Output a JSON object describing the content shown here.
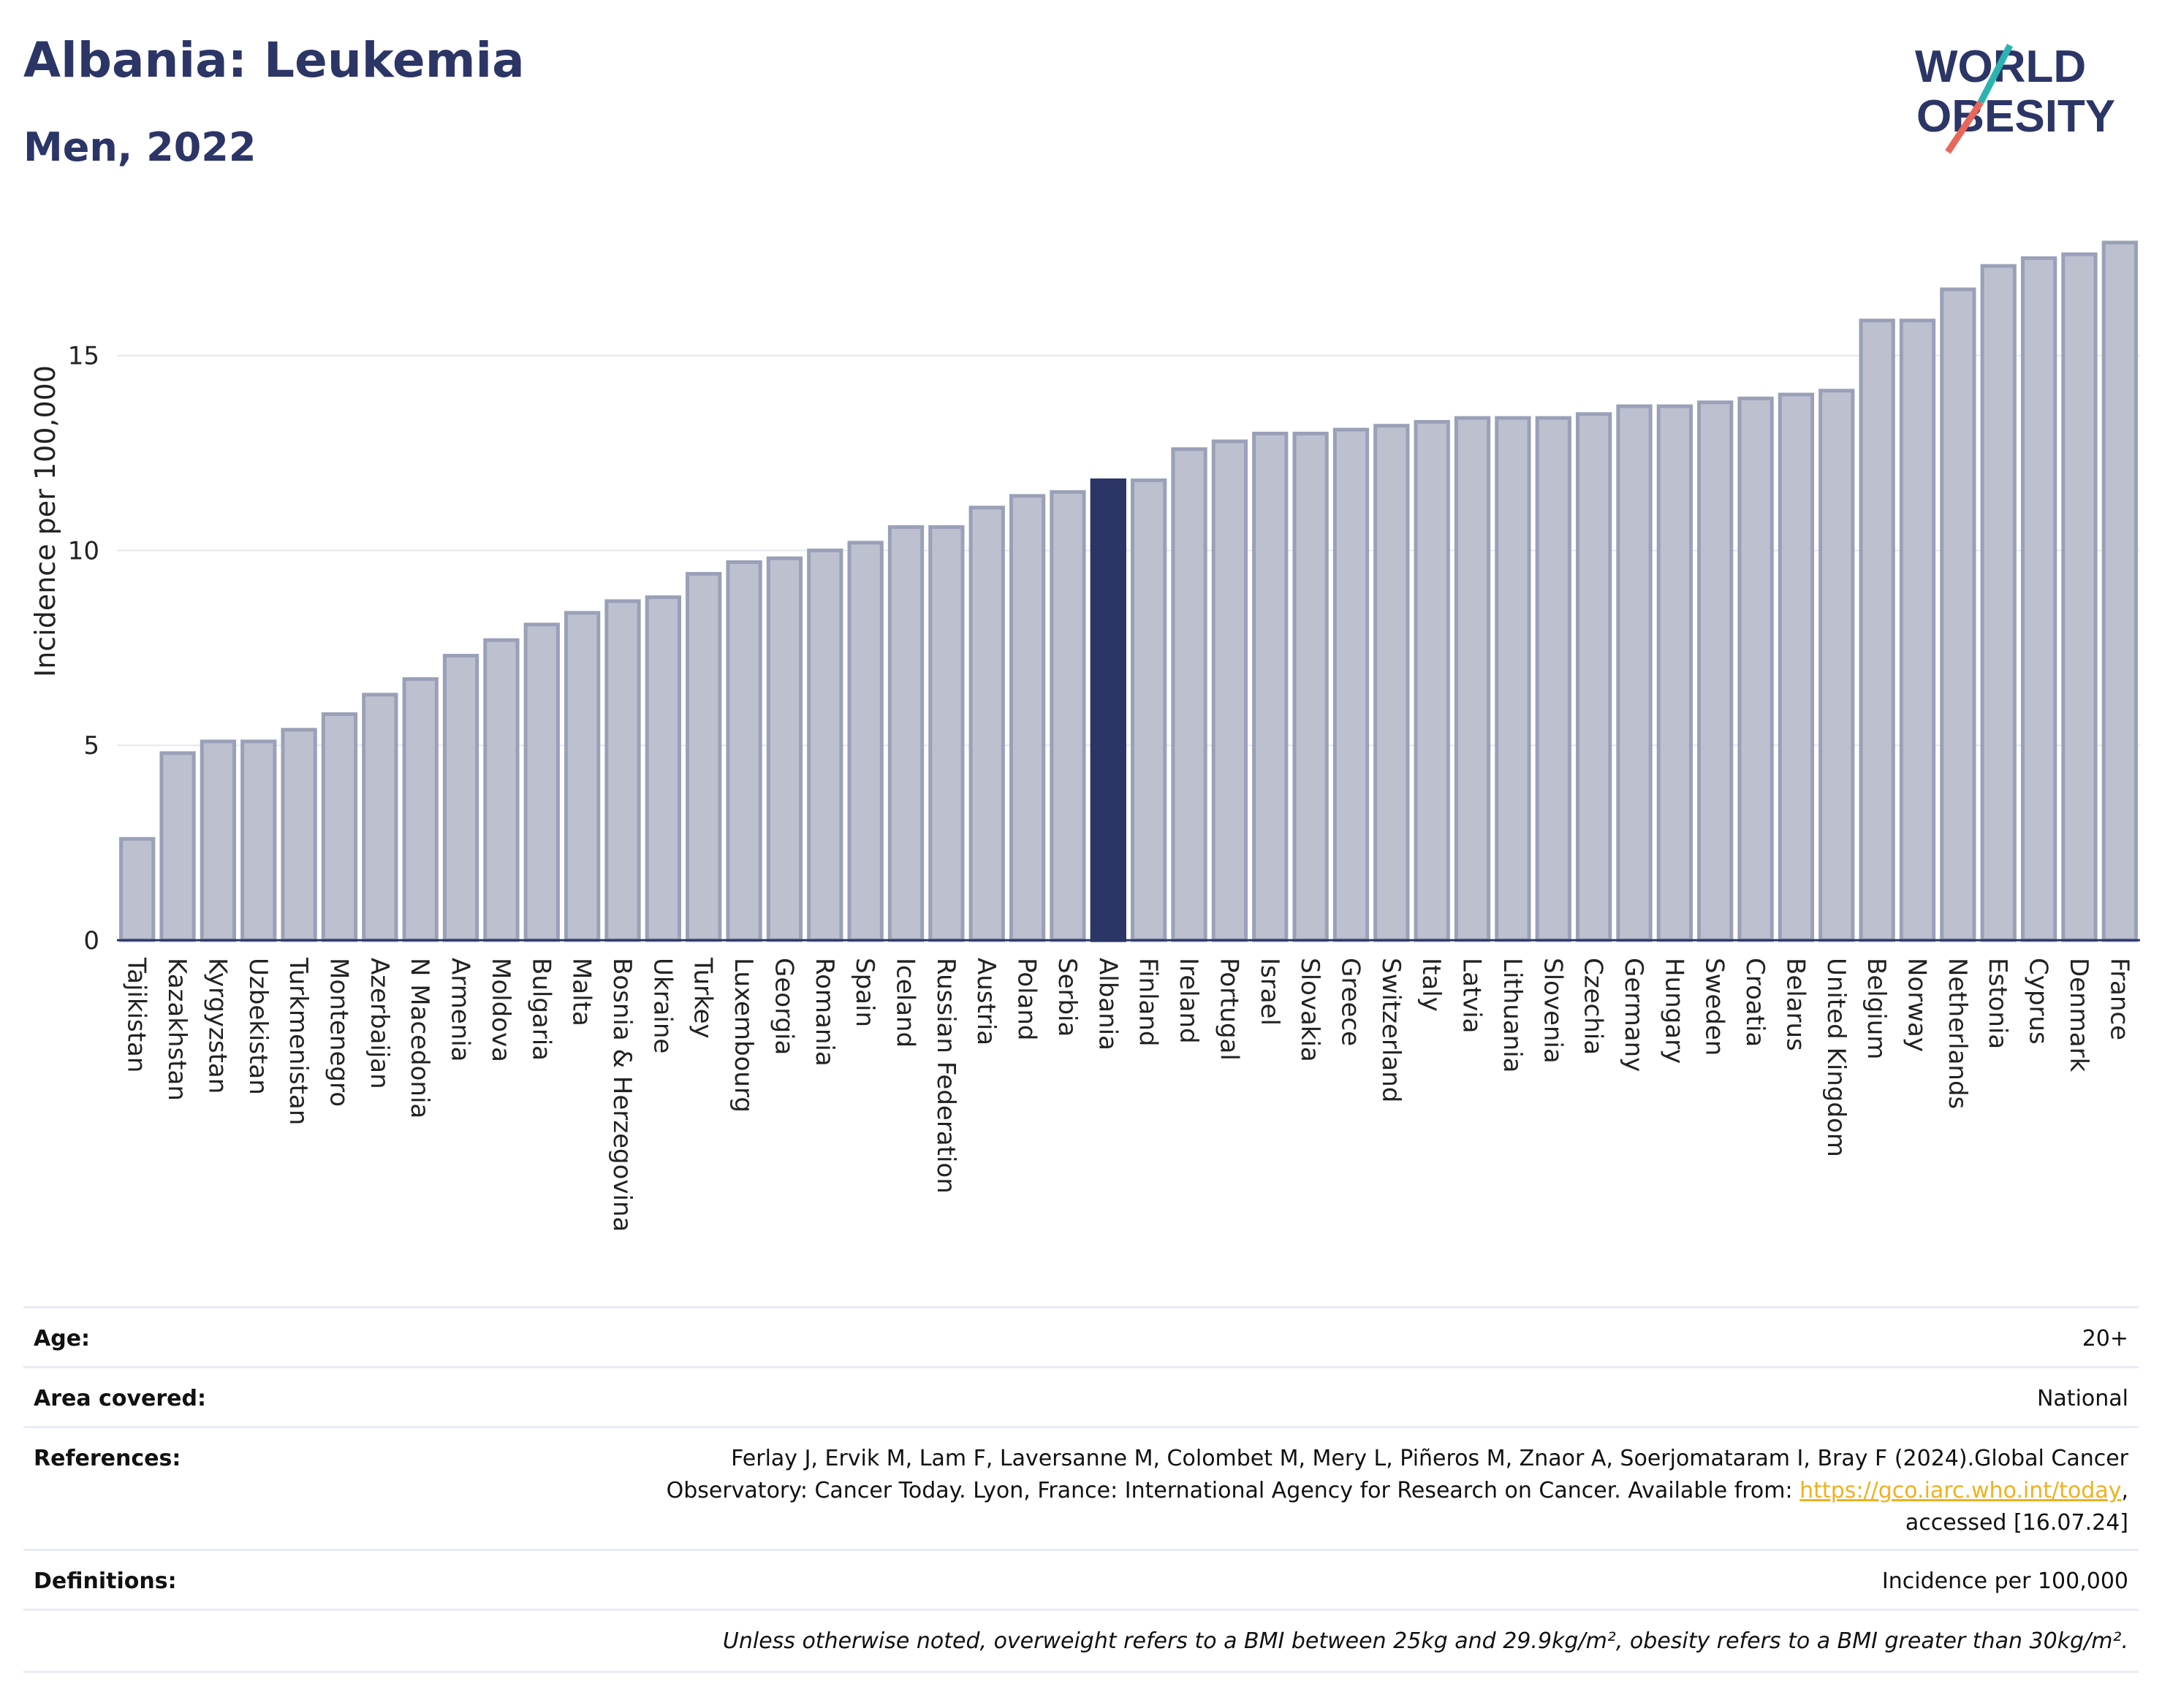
{
  "header": {
    "title": "Albania: Leukemia",
    "subtitle": "Men, 2022",
    "logo_line1": "WORLD",
    "logo_line2": "OBESITY"
  },
  "colors": {
    "bar": "#bcc0cf",
    "bar_stroke": "#9aa0b8",
    "highlight": "#2b3566",
    "title": "#2b3566",
    "grid": "#e6e8ef"
  },
  "chart_data": {
    "type": "bar",
    "ylabel": "Incidence per 100,000",
    "ylim": [
      0,
      18.5
    ],
    "yticks": [
      0,
      5,
      10,
      15
    ],
    "highlight": "Albania",
    "grid": true,
    "categories": [
      "Tajikistan",
      "Kazakhstan",
      "Kyrgyzstan",
      "Uzbekistan",
      "Turkmenistan",
      "Montenegro",
      "Azerbaijan",
      "N Macedonia",
      "Armenia",
      "Moldova",
      "Bulgaria",
      "Malta",
      "Bosnia & Herzegovina",
      "Ukraine",
      "Turkey",
      "Luxembourg",
      "Georgia",
      "Romania",
      "Spain",
      "Iceland",
      "Russian Federation",
      "Austria",
      "Poland",
      "Serbia",
      "Albania",
      "Finland",
      "Ireland",
      "Portugal",
      "Israel",
      "Slovakia",
      "Greece",
      "Switzerland",
      "Italy",
      "Latvia",
      "Lithuania",
      "Slovenia",
      "Czechia",
      "Germany",
      "Hungary",
      "Sweden",
      "Croatia",
      "Belarus",
      "United Kingdom",
      "Belgium",
      "Norway",
      "Netherlands",
      "Estonia",
      "Cyprus",
      "Denmark",
      "France"
    ],
    "values": [
      2.6,
      4.8,
      5.1,
      5.1,
      5.4,
      5.8,
      6.3,
      6.7,
      7.3,
      7.7,
      8.1,
      8.4,
      8.7,
      8.8,
      9.4,
      9.7,
      9.8,
      10.0,
      10.2,
      10.6,
      10.6,
      11.1,
      11.4,
      11.5,
      11.8,
      11.8,
      12.6,
      12.8,
      13.0,
      13.0,
      13.1,
      13.2,
      13.3,
      13.4,
      13.4,
      13.4,
      13.5,
      13.7,
      13.7,
      13.8,
      13.9,
      14.0,
      14.1,
      15.9,
      15.9,
      16.7,
      17.3,
      17.5,
      17.6,
      17.9
    ]
  },
  "meta": {
    "age_label": "Age:",
    "age_value": "20+",
    "area_label": "Area covered:",
    "area_value": "National",
    "references_label": "References:",
    "references_line1": "Ferlay J, Ervik M, Lam F, Laversanne M, Colombet M, Mery L, Piñeros M, Znaor A, Soerjomataram I, Bray F (2024).Global Cancer",
    "references_line2_pre": "Observatory: Cancer Today. Lyon, France: International Agency for Research on Cancer. Available from: ",
    "references_link": "https://gco.iarc.who.int/today",
    "references_line2_post": ",",
    "references_line3": "accessed [16.07.24]",
    "definitions_label": "Definitions:",
    "definitions_value": "Incidence per 100,000",
    "note": "Unless otherwise noted, overweight refers to a BMI between 25kg and 29.9kg/m², obesity refers to a BMI greater than 30kg/m²."
  }
}
